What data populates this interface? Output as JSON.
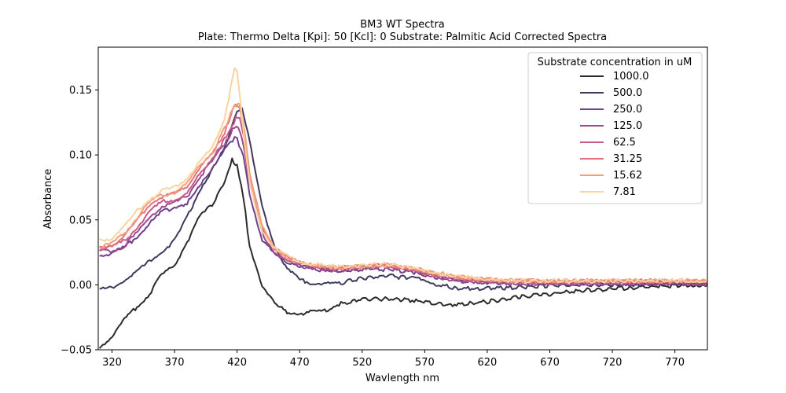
{
  "chart_data": {
    "type": "line",
    "title": "BM3 WT Spectra",
    "subtitle": "Plate: Thermo Delta  [Kpi]: 50  [Kcl]: 0  Substrate: Palmitic Acid Corrected Spectra",
    "xlabel": "Wavlength nm",
    "ylabel": "Absorbance",
    "xlim": [
      309,
      796
    ],
    "ylim": [
      -0.05,
      0.183
    ],
    "xticks": [
      320,
      370,
      420,
      470,
      520,
      570,
      620,
      670,
      720,
      770
    ],
    "yticks": [
      -0.05,
      0.0,
      0.05,
      0.1,
      0.15
    ],
    "ytick_labels": [
      "−0.05",
      "0.00",
      "0.05",
      "0.10",
      "0.15"
    ],
    "legend": {
      "title": "Substrate concentration in uM",
      "placement": "top-right"
    },
    "grid": false,
    "series": [
      {
        "name": "1000.0",
        "color": "#2b2b2b",
        "x": [
          310,
          320,
          330,
          340,
          350,
          360,
          370,
          380,
          390,
          400,
          410,
          416,
          420,
          425,
          430,
          440,
          450,
          460,
          470,
          480,
          490,
          500,
          520,
          540,
          560,
          580,
          600,
          620,
          640,
          660,
          680,
          700,
          720,
          740,
          760,
          780,
          796
        ],
        "y": [
          -0.048,
          -0.04,
          -0.027,
          -0.017,
          -0.007,
          0.008,
          0.015,
          0.033,
          0.052,
          0.062,
          0.08,
          0.096,
          0.092,
          0.068,
          0.03,
          0.0,
          -0.015,
          -0.021,
          -0.022,
          -0.021,
          -0.02,
          -0.015,
          -0.011,
          -0.011,
          -0.012,
          -0.015,
          -0.015,
          -0.013,
          -0.01,
          -0.008,
          -0.006,
          -0.004,
          -0.003,
          -0.002,
          -0.001,
          0.0,
          0.0
        ]
      },
      {
        "name": "500.0",
        "color": "#3f3a5e",
        "x": [
          310,
          320,
          330,
          340,
          350,
          360,
          370,
          380,
          390,
          400,
          410,
          420,
          424,
          430,
          440,
          450,
          460,
          470,
          480,
          490,
          500,
          520,
          540,
          560,
          570,
          580,
          600,
          620,
          640,
          660,
          680,
          700,
          720,
          740,
          760,
          780,
          796
        ],
        "y": [
          -0.004,
          -0.002,
          0.004,
          0.01,
          0.018,
          0.026,
          0.034,
          0.052,
          0.073,
          0.088,
          0.105,
          0.135,
          0.135,
          0.11,
          0.06,
          0.03,
          0.012,
          0.004,
          0.001,
          0.001,
          0.001,
          0.005,
          0.007,
          0.005,
          0.004,
          0.0,
          -0.003,
          -0.003,
          -0.002,
          -0.001,
          0.0,
          0.0,
          0.0,
          0.0,
          0.001,
          0.001,
          0.001
        ]
      },
      {
        "name": "250.0",
        "color": "#6e3f8a",
        "x": [
          310,
          320,
          330,
          340,
          350,
          360,
          370,
          380,
          390,
          400,
          410,
          418,
          420,
          425,
          430,
          440,
          450,
          460,
          470,
          480,
          500,
          520,
          540,
          560,
          580,
          600,
          620,
          640,
          660,
          680,
          700,
          720,
          740,
          760,
          780,
          796
        ],
        "y": [
          0.023,
          0.024,
          0.029,
          0.037,
          0.047,
          0.056,
          0.06,
          0.063,
          0.075,
          0.09,
          0.105,
          0.113,
          0.112,
          0.1,
          0.07,
          0.035,
          0.023,
          0.018,
          0.015,
          0.012,
          0.011,
          0.012,
          0.012,
          0.01,
          0.006,
          0.003,
          0.002,
          0.001,
          0.001,
          0.001,
          0.001,
          0.001,
          0.001,
          0.001,
          0.001,
          0.001
        ]
      },
      {
        "name": "125.0",
        "color": "#9c4a8e",
        "x": [
          310,
          320,
          330,
          340,
          350,
          360,
          370,
          380,
          390,
          400,
          410,
          418,
          421,
          425,
          430,
          440,
          450,
          460,
          470,
          480,
          500,
          520,
          540,
          560,
          580,
          600,
          620,
          640,
          660,
          680,
          700,
          720,
          740,
          760,
          780,
          796
        ],
        "y": [
          0.026,
          0.026,
          0.03,
          0.04,
          0.052,
          0.061,
          0.063,
          0.068,
          0.083,
          0.095,
          0.108,
          0.122,
          0.122,
          0.108,
          0.078,
          0.04,
          0.025,
          0.018,
          0.015,
          0.013,
          0.011,
          0.013,
          0.014,
          0.011,
          0.006,
          0.003,
          0.002,
          0.001,
          0.001,
          0.001,
          0.001,
          0.001,
          0.001,
          0.001,
          0.001,
          0.001
        ]
      },
      {
        "name": "62.5",
        "color": "#c65a8c",
        "x": [
          310,
          320,
          330,
          340,
          350,
          360,
          370,
          380,
          390,
          400,
          410,
          419,
          422,
          426,
          430,
          440,
          450,
          460,
          470,
          480,
          500,
          520,
          540,
          560,
          580,
          600,
          620,
          640,
          660,
          680,
          700,
          720,
          740,
          760,
          780,
          796
        ],
        "y": [
          0.028,
          0.029,
          0.034,
          0.044,
          0.056,
          0.064,
          0.066,
          0.07,
          0.085,
          0.098,
          0.112,
          0.128,
          0.128,
          0.112,
          0.08,
          0.042,
          0.027,
          0.02,
          0.017,
          0.014,
          0.013,
          0.014,
          0.015,
          0.012,
          0.007,
          0.004,
          0.003,
          0.002,
          0.002,
          0.002,
          0.002,
          0.002,
          0.002,
          0.002,
          0.002,
          0.002
        ]
      },
      {
        "name": "31.25",
        "color": "#e3727c",
        "x": [
          310,
          320,
          330,
          340,
          350,
          360,
          370,
          380,
          390,
          400,
          410,
          418,
          422,
          426,
          430,
          440,
          450,
          460,
          470,
          480,
          500,
          520,
          540,
          560,
          580,
          600,
          620,
          640,
          660,
          680,
          700,
          720,
          740,
          760,
          780,
          796
        ],
        "y": [
          0.028,
          0.031,
          0.038,
          0.05,
          0.062,
          0.068,
          0.07,
          0.076,
          0.09,
          0.1,
          0.117,
          0.138,
          0.137,
          0.118,
          0.085,
          0.045,
          0.028,
          0.021,
          0.018,
          0.015,
          0.013,
          0.014,
          0.015,
          0.012,
          0.008,
          0.005,
          0.004,
          0.003,
          0.003,
          0.003,
          0.003,
          0.003,
          0.003,
          0.003,
          0.003,
          0.003
        ]
      },
      {
        "name": "15.62",
        "color": "#f39d79",
        "x": [
          310,
          320,
          330,
          340,
          350,
          360,
          370,
          380,
          390,
          400,
          410,
          418,
          422,
          426,
          430,
          440,
          450,
          460,
          470,
          480,
          500,
          520,
          540,
          560,
          580,
          600,
          620,
          640,
          660,
          680,
          700,
          720,
          740,
          760,
          780,
          796
        ],
        "y": [
          0.029,
          0.032,
          0.04,
          0.052,
          0.063,
          0.069,
          0.071,
          0.078,
          0.092,
          0.102,
          0.12,
          0.139,
          0.138,
          0.118,
          0.085,
          0.045,
          0.028,
          0.021,
          0.017,
          0.015,
          0.013,
          0.014,
          0.015,
          0.013,
          0.009,
          0.006,
          0.004,
          0.003,
          0.003,
          0.003,
          0.003,
          0.003,
          0.003,
          0.003,
          0.003,
          0.003
        ]
      },
      {
        "name": "7.81",
        "color": "#f9d3a0",
        "x": [
          310,
          320,
          330,
          340,
          350,
          360,
          370,
          380,
          390,
          400,
          410,
          415,
          418,
          420,
          423,
          426,
          430,
          440,
          450,
          460,
          470,
          480,
          500,
          520,
          540,
          560,
          580,
          600,
          620,
          640,
          660,
          680,
          700,
          720,
          740,
          760,
          780,
          796
        ],
        "y": [
          0.034,
          0.036,
          0.045,
          0.057,
          0.066,
          0.072,
          0.075,
          0.082,
          0.095,
          0.105,
          0.128,
          0.152,
          0.166,
          0.164,
          0.14,
          0.11,
          0.078,
          0.042,
          0.028,
          0.022,
          0.018,
          0.016,
          0.014,
          0.015,
          0.016,
          0.013,
          0.009,
          0.006,
          0.004,
          0.003,
          0.003,
          0.003,
          0.003,
          0.003,
          0.003,
          0.003,
          0.003,
          0.003
        ]
      }
    ]
  }
}
